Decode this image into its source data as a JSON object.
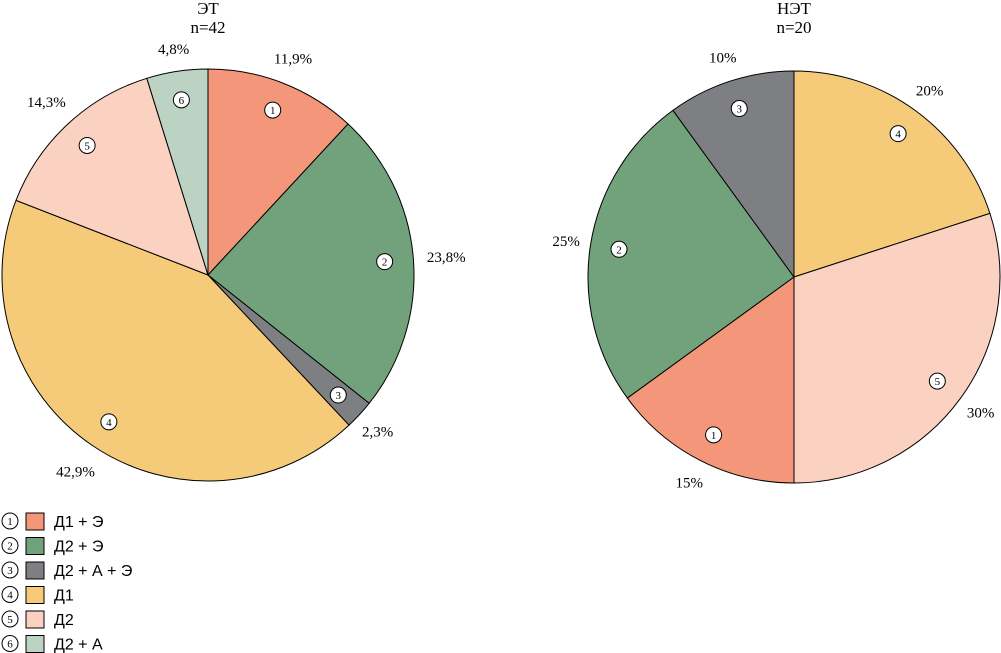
{
  "chart_data": [
    {
      "type": "pie",
      "title": "ЭТ",
      "subtitle": "n=42",
      "slices": [
        {
          "id": "1",
          "value": 11.9,
          "label": "11,9%"
        },
        {
          "id": "2",
          "value": 23.8,
          "label": "23,8%"
        },
        {
          "id": "3",
          "value": 2.3,
          "label": "2,3%"
        },
        {
          "id": "4",
          "value": 42.9,
          "label": "42,9%"
        },
        {
          "id": "5",
          "value": 14.3,
          "label": "14,3%"
        },
        {
          "id": "6",
          "value": 4.8,
          "label": "4,8%"
        }
      ]
    },
    {
      "type": "pie",
      "title": "НЭТ",
      "subtitle": "n=20",
      "slices": [
        {
          "id": "4",
          "value": 20,
          "label": "20%"
        },
        {
          "id": "5",
          "value": 30,
          "label": "30%"
        },
        {
          "id": "1",
          "value": 15,
          "label": "15%"
        },
        {
          "id": "2",
          "value": 25,
          "label": "25%"
        },
        {
          "id": "3",
          "value": 10,
          "label": "10%"
        }
      ]
    }
  ],
  "legend": [
    {
      "id": "1",
      "label": "Д1 + Э",
      "color": "#F4967A"
    },
    {
      "id": "2",
      "label": "Д2 + Э",
      "color": "#71A27C"
    },
    {
      "id": "3",
      "label": "Д2 + А + Э",
      "color": "#7E7F82"
    },
    {
      "id": "4",
      "label": "Д1",
      "color": "#F5CB7A"
    },
    {
      "id": "5",
      "label": "Д2",
      "color": "#FBD1C1"
    },
    {
      "id": "6",
      "label": "Д2 + А",
      "color": "#BCD2C2"
    }
  ]
}
